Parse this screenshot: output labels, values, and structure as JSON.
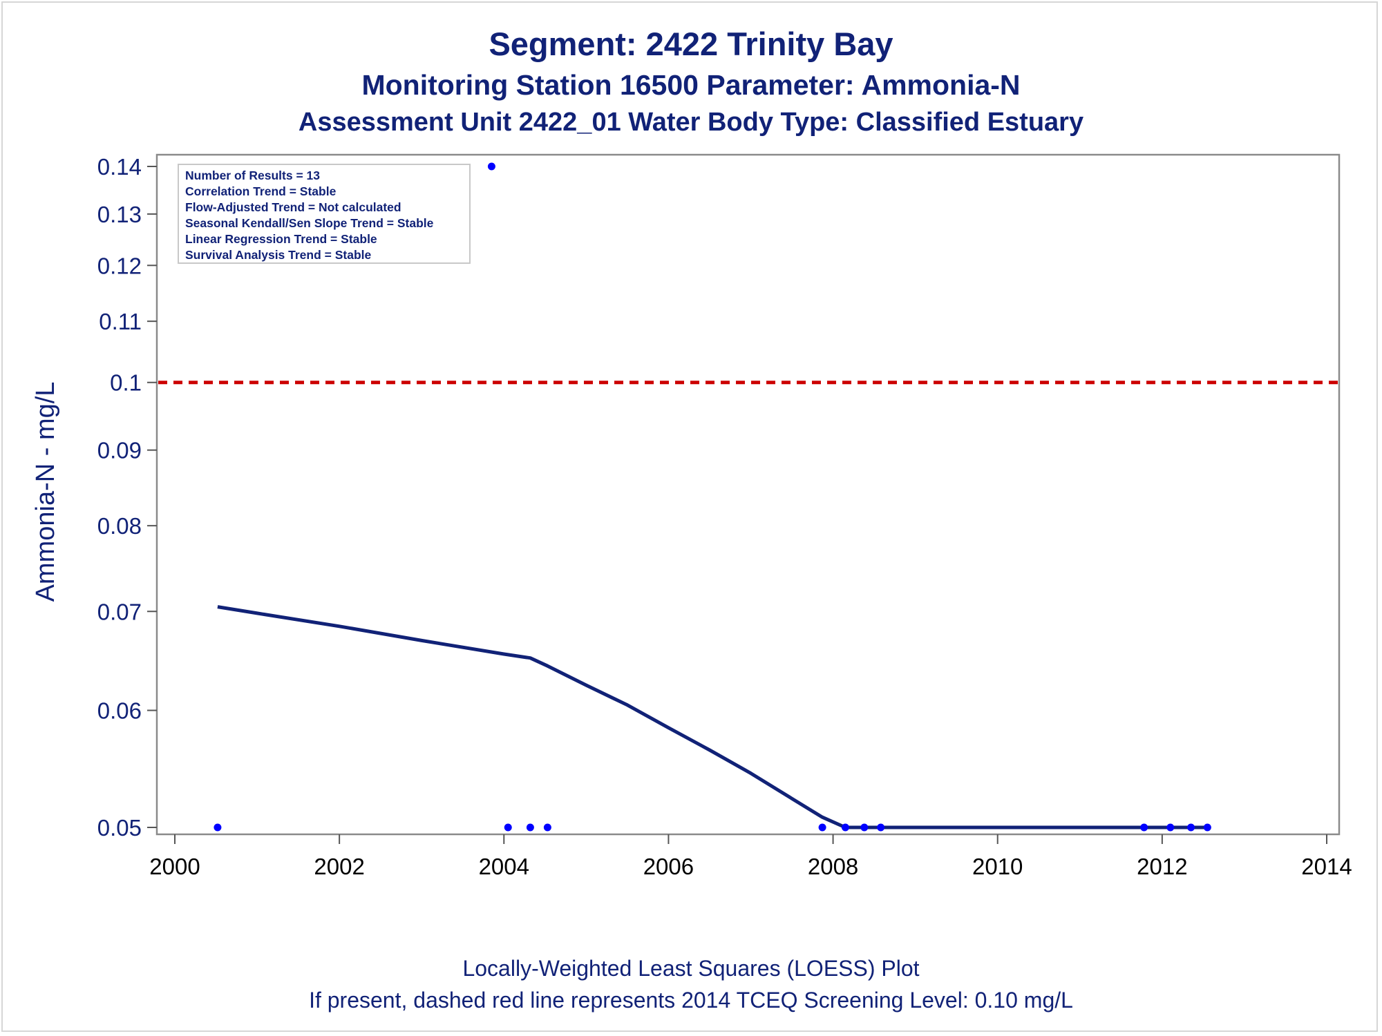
{
  "titles": {
    "line1": "Segment: 2422  Trinity Bay",
    "line2": "Monitoring Station 16500 Parameter: Ammonia-N",
    "line3": "Assessment Unit 2422_01   Water Body Type: Classified Estuary"
  },
  "footer": {
    "line1": "Locally-Weighted Least Squares (LOESS) Plot",
    "line2": "If present, dashed red line represents 2014 TCEQ Screening Level: 0.10 mg/L"
  },
  "stats_box": [
    "Number of Results = 13",
    "Correlation Trend = Stable",
    "Flow-Adjusted Trend = Not calculated",
    "Seasonal Kendall/Sen Slope Trend = Stable",
    "Linear Regression Trend = Stable",
    "Survival Analysis Trend = Stable"
  ],
  "chart_data": {
    "type": "scatter",
    "ylabel": "Ammonia-N - mg/L",
    "xlabel": "",
    "y_scale": "log",
    "xlim": [
      2000,
      2014
    ],
    "ylim": [
      0.05,
      0.14
    ],
    "x_ticks": [
      2000,
      2002,
      2004,
      2006,
      2008,
      2010,
      2012,
      2014
    ],
    "x_tick_labels": [
      "2000",
      "2002",
      "2004",
      "2006",
      "2008",
      "2010",
      "2012",
      "2014"
    ],
    "y_ticks": [
      0.05,
      0.06,
      0.07,
      0.08,
      0.09,
      0.1,
      0.11,
      0.12,
      0.13,
      0.14
    ],
    "y_tick_labels": [
      "0.05",
      "0.06",
      "0.07",
      "0.08",
      "0.09",
      "0.1",
      "0.11",
      "0.12",
      "0.13",
      "0.14"
    ],
    "screening_level": {
      "value": 0.1,
      "color": "#cc0000",
      "style": "dashed"
    },
    "points_color": "#0000ff",
    "line_color": "#112277",
    "points": [
      {
        "x": 2000.52,
        "y": 0.05
      },
      {
        "x": 2003.85,
        "y": 0.14
      },
      {
        "x": 2004.05,
        "y": 0.05
      },
      {
        "x": 2004.32,
        "y": 0.05
      },
      {
        "x": 2004.53,
        "y": 0.05
      },
      {
        "x": 2007.87,
        "y": 0.05
      },
      {
        "x": 2008.15,
        "y": 0.05
      },
      {
        "x": 2008.38,
        "y": 0.05
      },
      {
        "x": 2008.58,
        "y": 0.05
      },
      {
        "x": 2011.78,
        "y": 0.05
      },
      {
        "x": 2012.1,
        "y": 0.05
      },
      {
        "x": 2012.35,
        "y": 0.05
      },
      {
        "x": 2012.55,
        "y": 0.05
      }
    ],
    "loess": [
      {
        "x": 2000.52,
        "y": 0.0705
      },
      {
        "x": 2001.0,
        "y": 0.0698
      },
      {
        "x": 2002.0,
        "y": 0.0684
      },
      {
        "x": 2003.0,
        "y": 0.0669
      },
      {
        "x": 2004.0,
        "y": 0.0655
      },
      {
        "x": 2004.32,
        "y": 0.0651
      },
      {
        "x": 2004.53,
        "y": 0.0643
      },
      {
        "x": 2005.0,
        "y": 0.0624
      },
      {
        "x": 2005.5,
        "y": 0.0605
      },
      {
        "x": 2006.0,
        "y": 0.0584
      },
      {
        "x": 2006.5,
        "y": 0.0564
      },
      {
        "x": 2007.0,
        "y": 0.0544
      },
      {
        "x": 2007.5,
        "y": 0.0523
      },
      {
        "x": 2007.87,
        "y": 0.0508
      },
      {
        "x": 2008.15,
        "y": 0.05
      },
      {
        "x": 2012.55,
        "y": 0.05
      }
    ]
  }
}
